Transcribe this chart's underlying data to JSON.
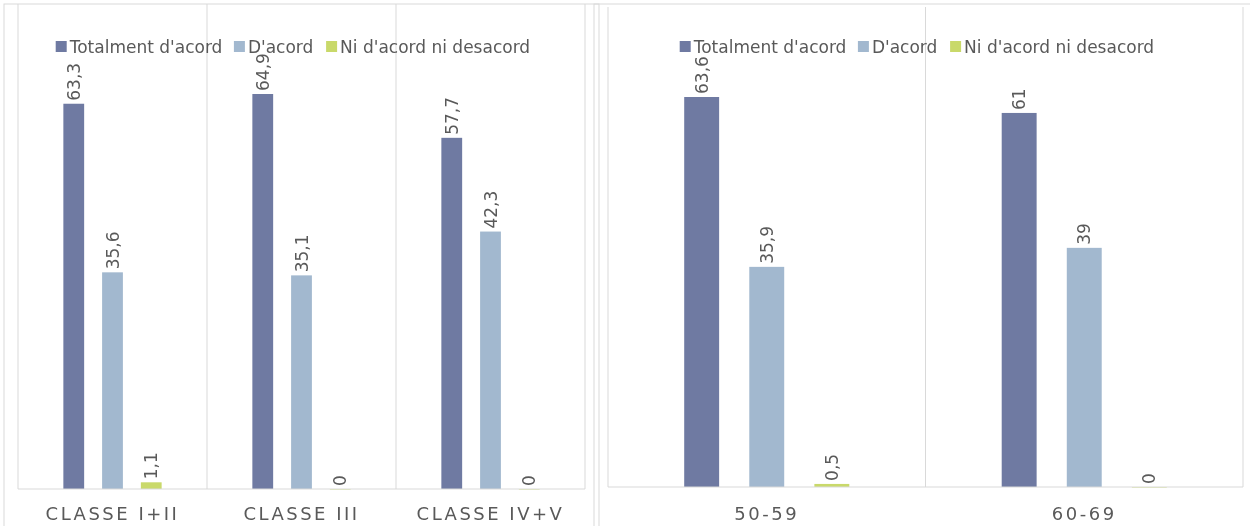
{
  "chart_data": [
    {
      "type": "bar",
      "categories": [
        "CLASSE I+II",
        "CLASSE III",
        "CLASSE IV+V"
      ],
      "legend": "top",
      "series": [
        {
          "name": "Totalment d'acord",
          "color": "#6f7aa2",
          "values": [
            63.3,
            64.9,
            57.7
          ],
          "value_labels": [
            "63,3",
            "64,9",
            "57,7"
          ]
        },
        {
          "name": "D'acord",
          "color": "#a2b8cf",
          "values": [
            35.6,
            35.1,
            42.3
          ],
          "value_labels": [
            "35,6",
            "35,1",
            "42,3"
          ]
        },
        {
          "name": "Ni d'acord ni desacord",
          "color": "#c9d96a",
          "values": [
            1.1,
            0,
            0
          ],
          "value_labels": [
            "1,1",
            "0",
            "0"
          ]
        }
      ]
    },
    {
      "type": "bar",
      "categories": [
        "50-59",
        "60-69"
      ],
      "legend": "top",
      "series": [
        {
          "name": "Totalment d'acord",
          "color": "#6f7aa2",
          "values": [
            63.6,
            61
          ],
          "value_labels": [
            "63,6",
            "61"
          ]
        },
        {
          "name": "D'acord",
          "color": "#a2b8cf",
          "values": [
            35.9,
            39
          ],
          "value_labels": [
            "35,9",
            "39"
          ]
        },
        {
          "name": "Ni d'acord ni desacord",
          "color": "#c9d96a",
          "values": [
            0.5,
            0
          ],
          "value_labels": [
            "0,5",
            "0"
          ]
        }
      ]
    }
  ]
}
